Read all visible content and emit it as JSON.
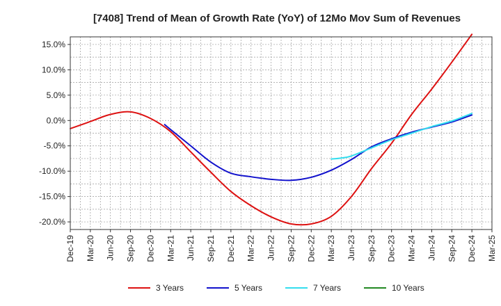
{
  "chart_data": {
    "type": "line",
    "title": "[7408]  Trend of Mean of Growth Rate (YoY) of 12Mo Mov Sum of Revenues",
    "xlabel": "",
    "ylabel": "",
    "ylim": [
      -21.5,
      16.5
    ],
    "y_ticks": [
      15,
      10,
      5,
      0,
      -5,
      -10,
      -15,
      -20
    ],
    "y_tick_labels": [
      "15.0%",
      "10.0%",
      "5.0%",
      "0.0%",
      "-5.0%",
      "-10.0%",
      "-15.0%",
      "-20.0%"
    ],
    "x_tick_labels": [
      "Dec-19",
      "Mar-20",
      "Jun-20",
      "Sep-20",
      "Dec-20",
      "Mar-21",
      "Jun-21",
      "Sep-21",
      "Dec-21",
      "Mar-22",
      "Jun-22",
      "Sep-22",
      "Dec-22",
      "Mar-23",
      "Jun-23",
      "Sep-23",
      "Dec-23",
      "Mar-24",
      "Jun-24",
      "Sep-24",
      "Dec-24",
      "Mar-25"
    ],
    "grid": true,
    "legend_position": "bottom",
    "series": [
      {
        "name": "3 Years",
        "color": "#dd1111",
        "x": [
          0,
          1,
          2,
          3,
          4,
          5,
          6,
          7,
          8,
          9,
          10,
          11,
          12,
          13,
          14,
          15,
          16,
          17,
          18,
          19,
          20
        ],
        "values": [
          -1.6,
          -0.2,
          1.2,
          1.7,
          0.4,
          -2.2,
          -6.2,
          -10.2,
          -14.0,
          -16.8,
          -19.0,
          -20.4,
          -20.4,
          -18.9,
          -15.0,
          -9.5,
          -4.5,
          1.2,
          6.2,
          11.5,
          17.0
        ]
      },
      {
        "name": "5 Years",
        "color": "#1111cc",
        "x": [
          4.7,
          5,
          6,
          7,
          8,
          9,
          10,
          11,
          12,
          13,
          14,
          15,
          16,
          17,
          18,
          19,
          20
        ],
        "values": [
          -0.8,
          -1.8,
          -5.0,
          -8.2,
          -10.4,
          -11.1,
          -11.6,
          -11.8,
          -11.2,
          -9.8,
          -7.7,
          -5.2,
          -3.6,
          -2.3,
          -1.3,
          -0.3,
          1.1
        ]
      },
      {
        "name": "7 Years",
        "color": "#33ddee",
        "x": [
          13,
          13.5,
          14,
          15,
          16,
          17,
          18,
          19,
          20
        ],
        "values": [
          -7.6,
          -7.4,
          -7.0,
          -5.4,
          -3.8,
          -2.5,
          -1.2,
          -0.1,
          1.4
        ]
      },
      {
        "name": "10 Years",
        "color": "#228822",
        "x": [],
        "values": []
      }
    ]
  }
}
